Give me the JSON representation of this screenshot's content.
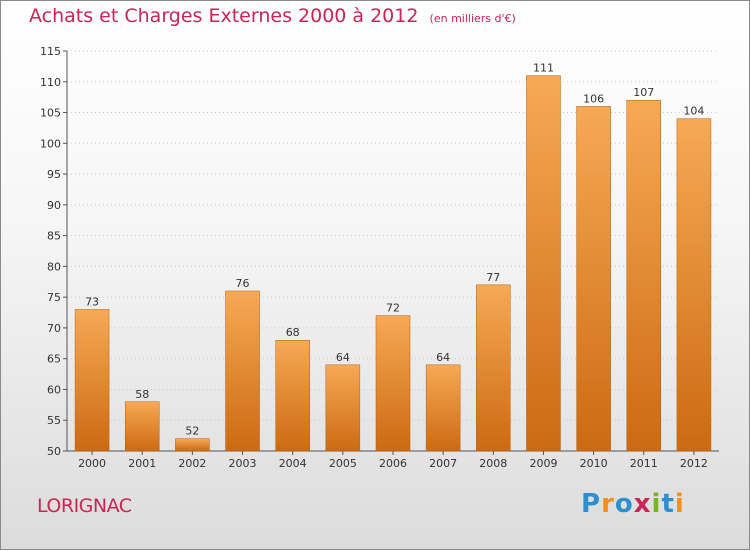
{
  "header": {
    "title": "Achats et Charges Externes 2000 à 2012",
    "subtitle": "(en milliers d'€)"
  },
  "footer": {
    "commune": "LORIGNAC",
    "logo": "Proxiti",
    "logo_colors": [
      "#2e8fcf",
      "#f3901b",
      "#2e8fcf",
      "#cc2456",
      "#7ab51d",
      "#2e8fcf",
      "#f3901b"
    ]
  },
  "colors": {
    "bar_top": "#f7a955",
    "bar_bottom": "#cc6a12",
    "accent": "#cc2456",
    "axis": "#555555",
    "grid": "#cccccc"
  },
  "chart_data": {
    "type": "bar",
    "categories": [
      "2000",
      "2001",
      "2002",
      "2003",
      "2004",
      "2005",
      "2006",
      "2007",
      "2008",
      "2009",
      "2010",
      "2011",
      "2012"
    ],
    "values": [
      73,
      58,
      52,
      76,
      68,
      64,
      72,
      64,
      77,
      111,
      106,
      107,
      104
    ],
    "ylim": [
      50,
      115
    ],
    "yticks": [
      50,
      55,
      60,
      65,
      70,
      75,
      80,
      85,
      90,
      95,
      100,
      105,
      110,
      115
    ],
    "grid": true
  }
}
